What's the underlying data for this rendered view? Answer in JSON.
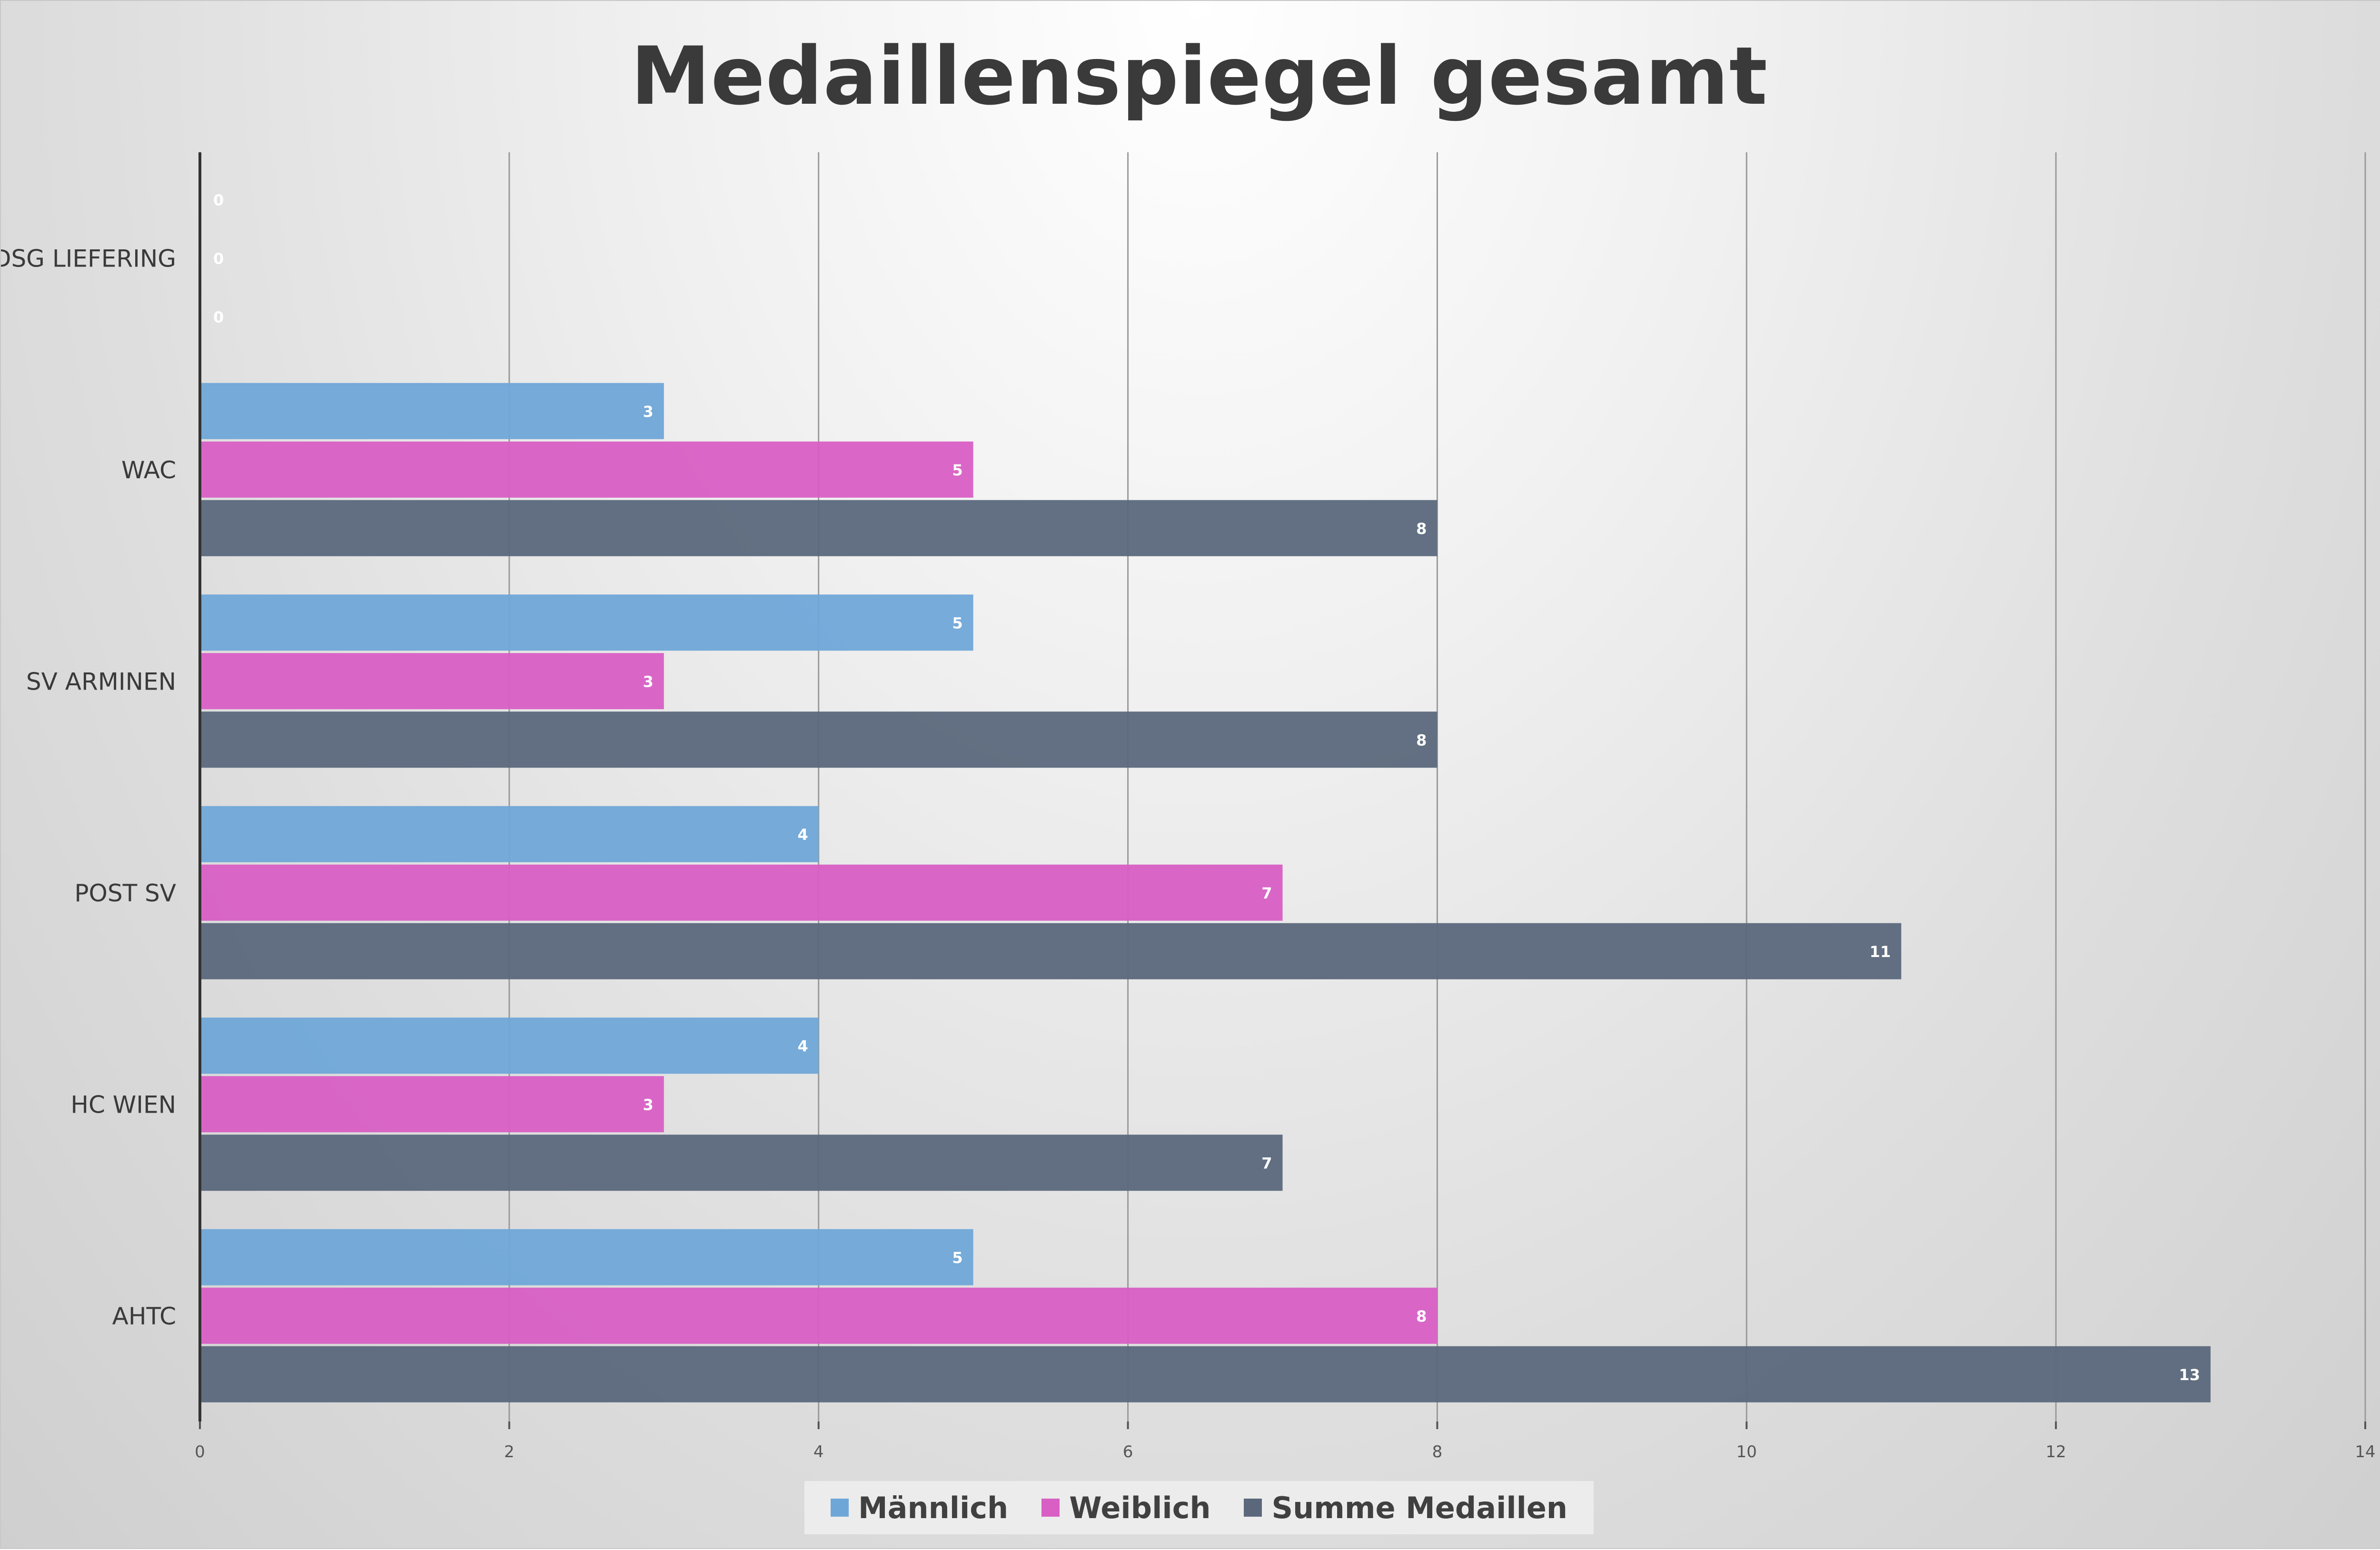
{
  "chart_data": {
    "type": "bar",
    "orientation": "horizontal",
    "title": "Medaillenspiegel gesamt",
    "xlabel": "",
    "ylabel": "",
    "xlim": [
      0,
      14
    ],
    "x_ticks": [
      0,
      2,
      4,
      6,
      8,
      10,
      12,
      14
    ],
    "grid": true,
    "legend_position": "bottom",
    "categories": [
      "DSG LIEFERING",
      "WAC",
      "SV ARMINEN",
      "POST SV",
      "HC WIEN",
      "AHTC"
    ],
    "series": [
      {
        "name": "Männlich",
        "color": "#6fa6d8",
        "values": [
          0,
          3,
          5,
          4,
          4,
          5
        ]
      },
      {
        "name": "Weiblich",
        "color": "#d85fc4",
        "values": [
          0,
          5,
          3,
          7,
          3,
          8
        ]
      },
      {
        "name": "Summe Medaillen",
        "color": "#5b687c",
        "values": [
          0,
          8,
          8,
          11,
          7,
          13
        ]
      }
    ]
  }
}
